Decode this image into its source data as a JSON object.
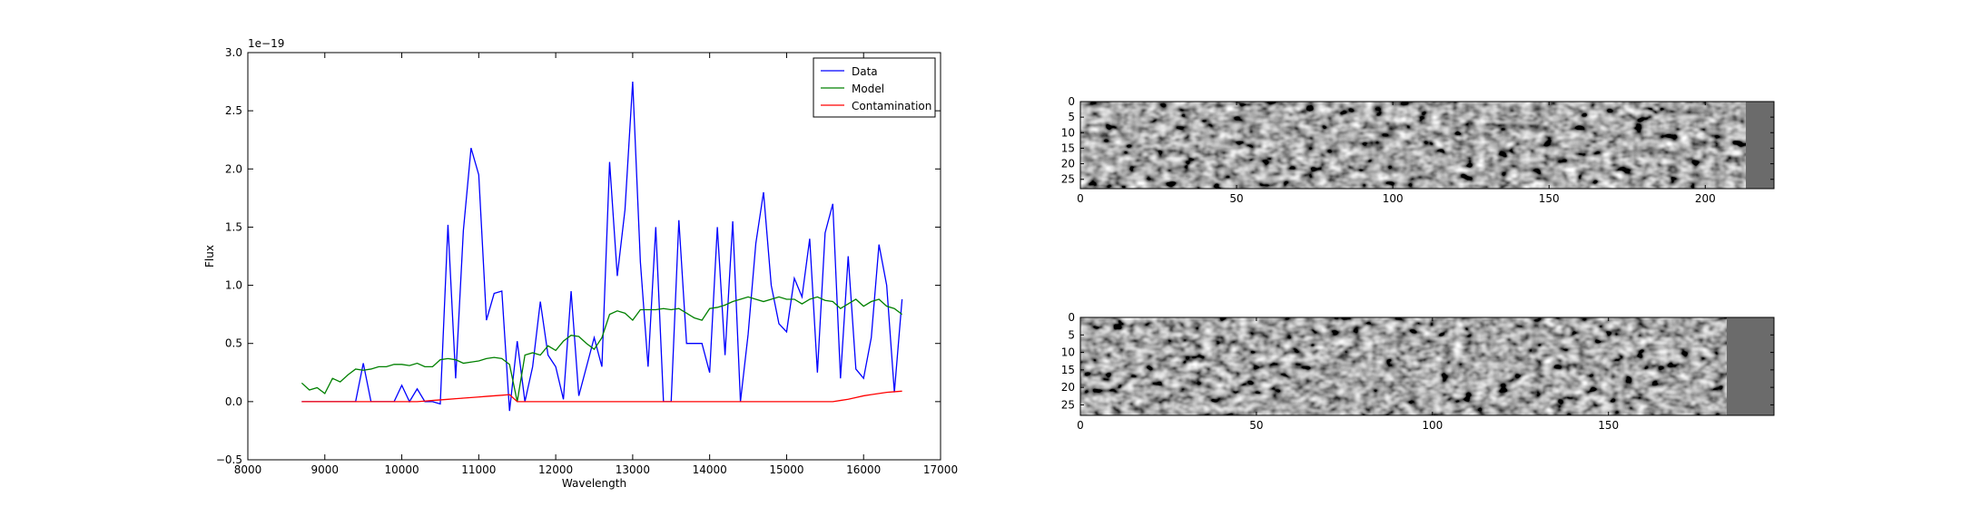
{
  "chart_data": [
    {
      "type": "line",
      "xlabel": "Wavelength",
      "ylabel": "Flux",
      "offset_text": "1e−19",
      "legend": "upper right",
      "x": [
        8700,
        8800,
        8900,
        9000,
        9100,
        9200,
        9300,
        9400,
        9500,
        9600,
        9700,
        9800,
        9900,
        10000,
        10100,
        10200,
        10300,
        10400,
        10500,
        10600,
        10700,
        10800,
        10900,
        11000,
        11100,
        11200,
        11300,
        11400,
        11500,
        11600,
        11700,
        11800,
        11900,
        12000,
        12100,
        12200,
        12300,
        12400,
        12500,
        12600,
        12700,
        12800,
        12900,
        13000,
        13100,
        13200,
        13300,
        13400,
        13500,
        13600,
        13700,
        13800,
        13900,
        14000,
        14100,
        14200,
        14300,
        14400,
        14500,
        14600,
        14700,
        14800,
        14900,
        15000,
        15100,
        15200,
        15300,
        15400,
        15500,
        15600,
        15700,
        15800,
        15900,
        16000,
        16100,
        16200,
        16300,
        16400,
        16500
      ],
      "series": [
        {
          "name": "Data",
          "color": "#0000ff",
          "values": [
            0,
            0,
            0,
            0,
            0,
            0,
            0,
            0,
            0.33,
            0,
            0,
            0,
            0,
            0.14,
            0,
            0.11,
            0,
            0,
            -0.02,
            1.52,
            0.2,
            1.47,
            2.18,
            1.95,
            0.7,
            0.93,
            0.95,
            -0.08,
            0.52,
            0,
            0.3,
            0.86,
            0.4,
            0.3,
            0.02,
            0.95,
            0.05,
            0.3,
            0.55,
            0.3,
            2.06,
            1.08,
            1.65,
            2.75,
            1.2,
            0.3,
            1.5,
            0,
            0,
            1.56,
            0.5,
            0.5,
            0.5,
            0.25,
            1.5,
            0.4,
            1.55,
            0,
            0.58,
            1.36,
            1.8,
            1.0,
            0.67,
            0.6,
            1.06,
            0.9,
            1.4,
            0.25,
            1.45,
            1.7,
            0.2,
            1.25,
            0.28,
            0.2,
            0.55,
            1.35,
            1.0,
            0.08,
            0.88
          ]
        },
        {
          "name": "Model",
          "color": "#008000",
          "values": [
            0.16,
            0.1,
            0.12,
            0.07,
            0.2,
            0.17,
            0.23,
            0.28,
            0.27,
            0.28,
            0.3,
            0.3,
            0.32,
            0.32,
            0.31,
            0.33,
            0.3,
            0.3,
            0.36,
            0.37,
            0.36,
            0.33,
            0.34,
            0.35,
            0.37,
            0.38,
            0.37,
            0.32,
            0.0,
            0.4,
            0.42,
            0.4,
            0.48,
            0.44,
            0.52,
            0.57,
            0.56,
            0.5,
            0.45,
            0.55,
            0.75,
            0.78,
            0.76,
            0.7,
            0.79,
            0.79,
            0.79,
            0.8,
            0.79,
            0.8,
            0.76,
            0.72,
            0.7,
            0.8,
            0.81,
            0.83,
            0.86,
            0.88,
            0.9,
            0.88,
            0.86,
            0.88,
            0.9,
            0.88,
            0.88,
            0.84,
            0.88,
            0.9,
            0.87,
            0.86,
            0.8,
            0.84,
            0.88,
            0.82,
            0.86,
            0.88,
            0.82,
            0.8,
            0.75
          ]
        },
        {
          "name": "Contamination",
          "color": "#ff0000",
          "values": [
            0,
            0,
            0,
            0,
            0,
            0,
            0,
            0,
            0,
            0,
            0,
            0,
            0,
            0,
            0,
            0,
            0.005,
            0.01,
            0.015,
            0.02,
            0.025,
            0.03,
            0.035,
            0.04,
            0.045,
            0.05,
            0.055,
            0.06,
            0,
            0,
            0,
            0,
            0,
            0,
            0,
            0,
            0,
            0,
            0,
            0,
            0,
            0,
            0,
            0,
            0,
            0,
            0,
            0,
            0,
            0,
            0,
            0,
            0,
            0,
            0,
            0,
            0,
            0,
            0,
            0,
            0,
            0,
            0,
            0,
            0,
            0,
            0,
            0,
            0,
            0,
            0.01,
            0.02,
            0.035,
            0.05,
            0.06,
            0.07,
            0.08,
            0.085,
            0.09
          ]
        }
      ],
      "xlim": [
        8000,
        17000
      ],
      "xticks": [
        8000,
        9000,
        10000,
        11000,
        12000,
        13000,
        14000,
        15000,
        16000,
        17000
      ],
      "ylim": [
        -0.5,
        3.0
      ],
      "yticks": [
        {
          "value": -0.5,
          "label": "−0.5"
        },
        {
          "value": 0,
          "label": "0.0"
        },
        0.5,
        {
          "value": 1,
          "label": "1.0"
        },
        1.5,
        {
          "value": 2,
          "label": "2.0"
        },
        2.5,
        {
          "value": 3,
          "label": "3.0"
        }
      ]
    },
    {
      "type": "image",
      "xlim": [
        0,
        222
      ],
      "ylim": [
        28,
        0
      ],
      "xticks": [
        0,
        50,
        100,
        150,
        200
      ],
      "yticks": [
        0,
        5,
        10,
        15,
        20,
        25
      ]
    },
    {
      "type": "image",
      "xlim": [
        0,
        197
      ],
      "ylim": [
        28,
        0
      ],
      "xticks": [
        0,
        50,
        100,
        150
      ],
      "yticks": [
        0,
        5,
        10,
        15,
        20,
        25
      ]
    }
  ]
}
